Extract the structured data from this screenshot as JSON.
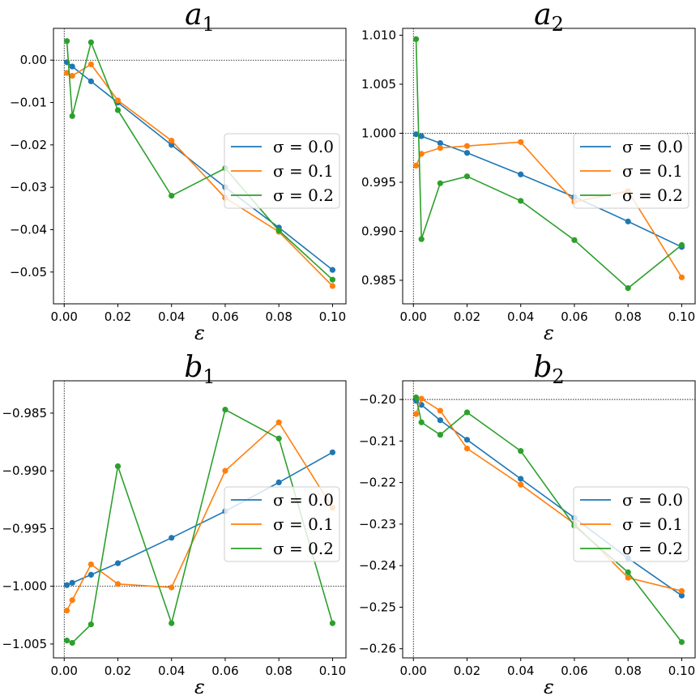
{
  "chart_data": [
    {
      "type": "line",
      "title": "a",
      "title_sub": "1",
      "xlabel": "ε",
      "ylabel": "",
      "xlim": [
        -0.004,
        0.105
      ],
      "ylim": [
        -0.0575,
        0.0075
      ],
      "xticks": [
        0.0,
        0.02,
        0.04,
        0.06,
        0.08,
        0.1
      ],
      "xtick_labels": [
        "0.00",
        "0.02",
        "0.04",
        "0.06",
        "0.08",
        "0.10"
      ],
      "yticks": [
        0.0,
        -0.01,
        -0.02,
        -0.03,
        -0.04,
        -0.05
      ],
      "ytick_labels": [
        "0.00",
        "−0.01",
        "−0.02",
        "−0.03",
        "−0.04",
        "−0.05"
      ],
      "reference": {
        "x": 0.0,
        "y": 0.0
      },
      "legend_position": "center-right",
      "x": [
        0.001,
        0.003,
        0.01,
        0.02,
        0.04,
        0.06,
        0.08,
        0.1
      ],
      "series": [
        {
          "name": "σ = 0.0",
          "color": "#1f77b4",
          "values": [
            -0.0005,
            -0.0015,
            -0.005,
            -0.01,
            -0.02,
            -0.03,
            -0.0395,
            -0.0495
          ]
        },
        {
          "name": "σ = 0.1",
          "color": "#ff7f0e",
          "values": [
            -0.003,
            -0.0037,
            -0.001,
            -0.0095,
            -0.019,
            -0.0325,
            -0.0405,
            -0.0533
          ]
        },
        {
          "name": "σ = 0.2",
          "color": "#2ca02c",
          "values": [
            0.0045,
            -0.0132,
            0.0042,
            -0.0118,
            -0.032,
            -0.0255,
            -0.0402,
            -0.0518
          ]
        }
      ]
    },
    {
      "type": "line",
      "title": "a",
      "title_sub": "2",
      "xlabel": "ε",
      "ylabel": "",
      "xlim": [
        -0.004,
        0.105
      ],
      "ylim": [
        0.9826,
        1.0107
      ],
      "xticks": [
        0.0,
        0.02,
        0.04,
        0.06,
        0.08,
        0.1
      ],
      "xtick_labels": [
        "0.00",
        "0.02",
        "0.04",
        "0.06",
        "0.08",
        "0.10"
      ],
      "yticks": [
        1.01,
        1.005,
        1.0,
        0.995,
        0.99,
        0.985
      ],
      "ytick_labels": [
        "1.010",
        "1.005",
        "1.000",
        "0.995",
        "0.990",
        "0.985"
      ],
      "reference": {
        "x": 0.0,
        "y": 1.0
      },
      "legend_position": "center-right",
      "x": [
        0.001,
        0.003,
        0.01,
        0.02,
        0.04,
        0.06,
        0.08,
        0.1
      ],
      "series": [
        {
          "name": "σ = 0.0",
          "color": "#1f77b4",
          "values": [
            0.9999,
            0.9997,
            0.999,
            0.998,
            0.9958,
            0.9935,
            0.991,
            0.9884
          ]
        },
        {
          "name": "σ = 0.1",
          "color": "#ff7f0e",
          "values": [
            0.9967,
            0.9979,
            0.9985,
            0.9987,
            0.9991,
            0.993,
            0.9941,
            0.9853
          ]
        },
        {
          "name": "σ = 0.2",
          "color": "#2ca02c",
          "values": [
            1.0096,
            0.9892,
            0.9949,
            0.9956,
            0.9931,
            0.9891,
            0.9842,
            0.9886
          ]
        }
      ]
    },
    {
      "type": "line",
      "title": "b",
      "title_sub": "1",
      "xlabel": "ε",
      "ylabel": "",
      "xlim": [
        -0.004,
        0.105
      ],
      "ylim": [
        -1.0062,
        -0.9822
      ],
      "xticks": [
        0.0,
        0.02,
        0.04,
        0.06,
        0.08,
        0.1
      ],
      "xtick_labels": [
        "0.00",
        "0.02",
        "0.04",
        "0.06",
        "0.08",
        "0.10"
      ],
      "yticks": [
        -0.985,
        -0.99,
        -0.995,
        -1.0,
        -1.005
      ],
      "ytick_labels": [
        "−0.985",
        "−0.990",
        "−0.995",
        "−1.000",
        "−1.005"
      ],
      "reference": {
        "x": 0.0,
        "y": -1.0
      },
      "legend_position": "center-right",
      "x": [
        0.001,
        0.003,
        0.01,
        0.02,
        0.04,
        0.06,
        0.08,
        0.1
      ],
      "series": [
        {
          "name": "σ = 0.0",
          "color": "#1f77b4",
          "values": [
            -0.9999,
            -0.9997,
            -0.999,
            -0.998,
            -0.9958,
            -0.9935,
            -0.991,
            -0.9884
          ]
        },
        {
          "name": "σ = 0.1",
          "color": "#ff7f0e",
          "values": [
            -1.0021,
            -1.0012,
            -0.9981,
            -0.9998,
            -1.0001,
            -0.99,
            -0.9858,
            -0.9932
          ]
        },
        {
          "name": "σ = 0.2",
          "color": "#2ca02c",
          "values": [
            -1.0047,
            -1.0049,
            -1.0033,
            -0.9896,
            -1.0032,
            -0.9847,
            -0.9872,
            -1.0032
          ]
        }
      ]
    },
    {
      "type": "line",
      "title": "b",
      "title_sub": "2",
      "xlabel": "ε",
      "ylabel": "",
      "xlim": [
        -0.004,
        0.105
      ],
      "ylim": [
        -0.2622,
        -0.1955
      ],
      "xticks": [
        0.0,
        0.02,
        0.04,
        0.06,
        0.08,
        0.1
      ],
      "xtick_labels": [
        "0.00",
        "0.02",
        "0.04",
        "0.06",
        "0.08",
        "0.10"
      ],
      "yticks": [
        -0.2,
        -0.21,
        -0.22,
        -0.23,
        -0.24,
        -0.25,
        -0.26
      ],
      "ytick_labels": [
        "−0.20",
        "−0.21",
        "−0.22",
        "−0.23",
        "−0.24",
        "−0.25",
        "−0.26"
      ],
      "reference": {
        "x": 0.0,
        "y": -0.2
      },
      "legend_position": "center-right",
      "x": [
        0.001,
        0.003,
        0.01,
        0.02,
        0.04,
        0.06,
        0.08,
        0.1
      ],
      "series": [
        {
          "name": "σ = 0.0",
          "color": "#1f77b4",
          "values": [
            -0.2003,
            -0.2013,
            -0.205,
            -0.2097,
            -0.2191,
            -0.2285,
            -0.2382,
            -0.2472
          ]
        },
        {
          "name": "σ = 0.1",
          "color": "#ff7f0e",
          "values": [
            -0.2035,
            -0.1998,
            -0.2027,
            -0.2118,
            -0.2205,
            -0.2299,
            -0.2429,
            -0.2461
          ]
        },
        {
          "name": "σ = 0.2",
          "color": "#2ca02c",
          "values": [
            -0.1995,
            -0.2055,
            -0.2085,
            -0.2031,
            -0.2124,
            -0.2304,
            -0.2416,
            -0.2584
          ]
        }
      ]
    }
  ]
}
